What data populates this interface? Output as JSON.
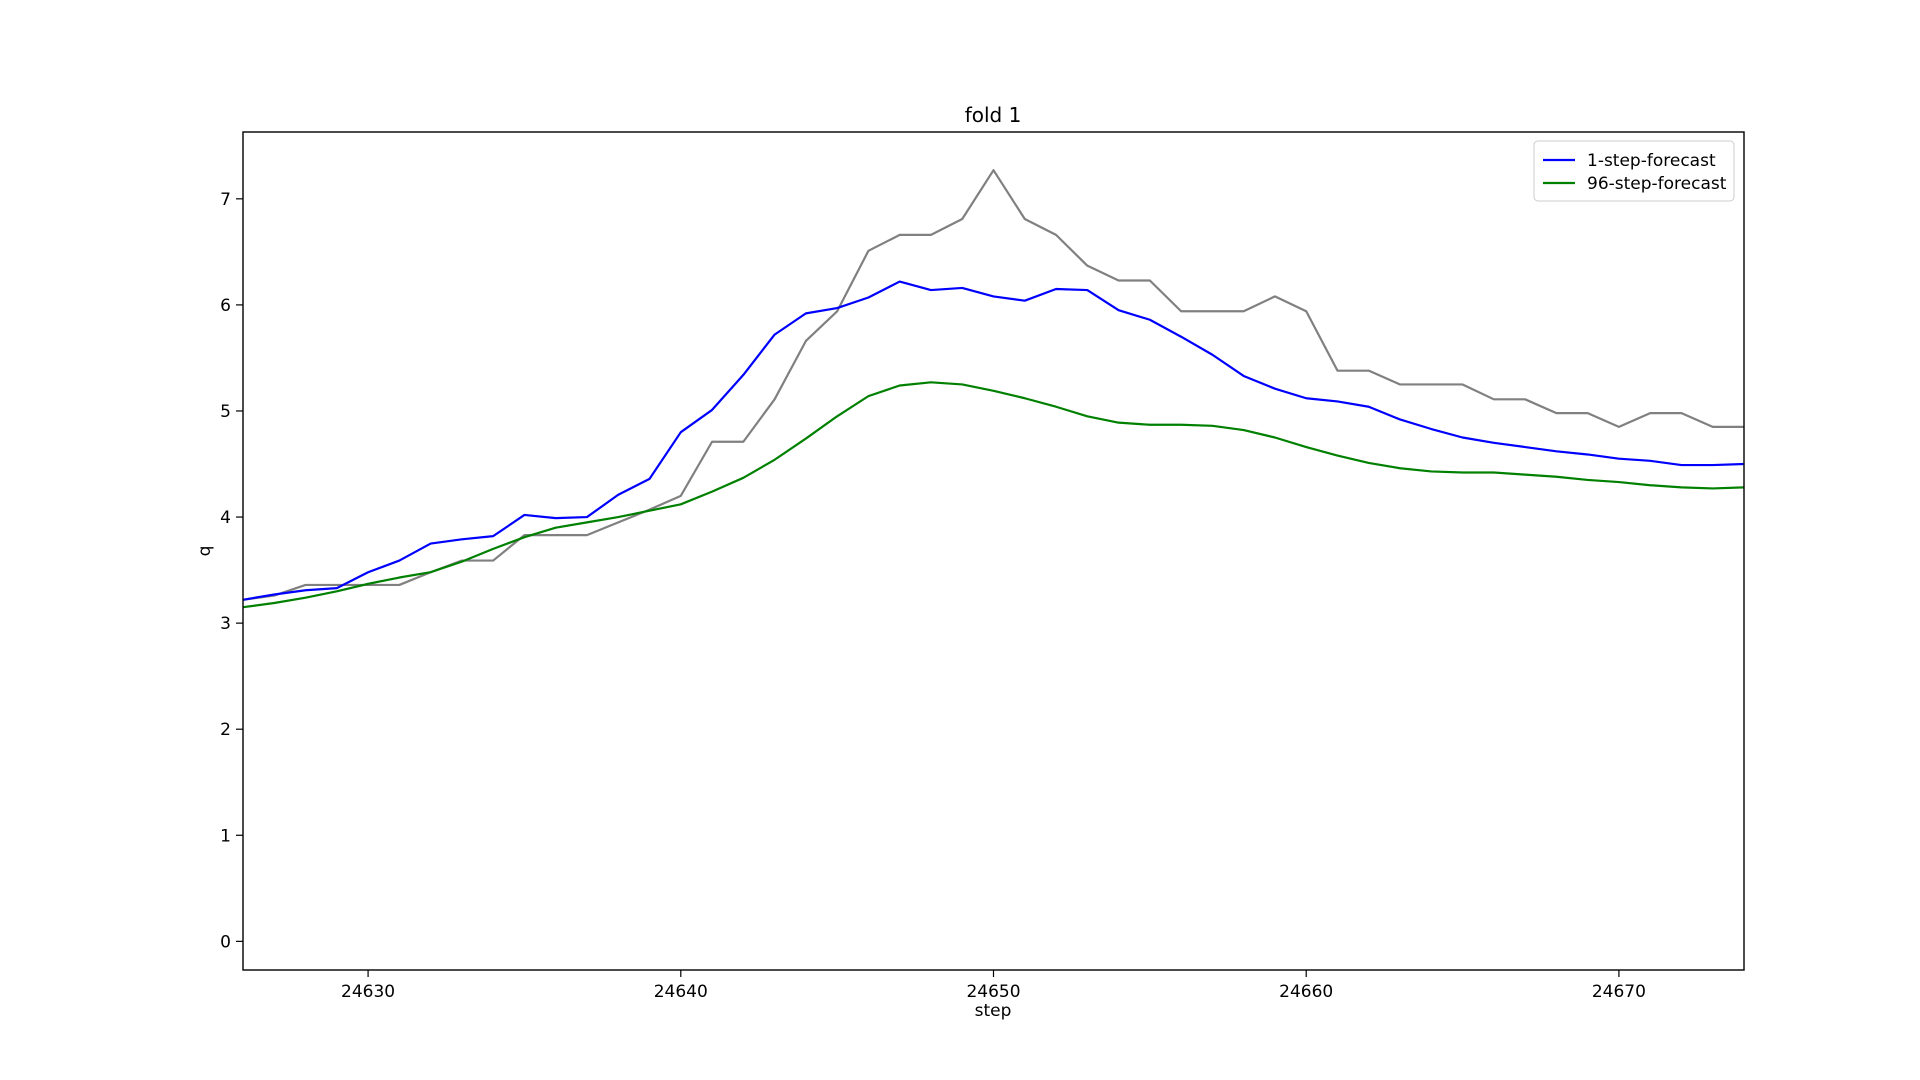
{
  "chart_data": {
    "type": "line",
    "title": "fold 1",
    "xlabel": "step",
    "ylabel": "q",
    "xlim": [
      24626,
      24674
    ],
    "ylim": [
      -0.27,
      7.63
    ],
    "xticks": [
      24630,
      24640,
      24650,
      24660,
      24670
    ],
    "yticks": [
      0,
      1,
      2,
      3,
      4,
      5,
      6,
      7
    ],
    "grid": false,
    "legend_position": "top-right",
    "x": [
      24626,
      24627,
      24628,
      24629,
      24630,
      24631,
      24632,
      24633,
      24634,
      24635,
      24636,
      24637,
      24638,
      24639,
      24640,
      24641,
      24642,
      24643,
      24644,
      24645,
      24646,
      24647,
      24648,
      24649,
      24650,
      24651,
      24652,
      24653,
      24654,
      24655,
      24656,
      24657,
      24658,
      24659,
      24660,
      24661,
      24662,
      24663,
      24664,
      24665,
      24666,
      24667,
      24668,
      24669,
      24670,
      24671,
      24672,
      24673,
      24674
    ],
    "series": [
      {
        "name": "",
        "color": "#808080",
        "values": [
          3.22,
          3.26,
          3.36,
          3.36,
          3.36,
          3.36,
          3.48,
          3.59,
          3.59,
          3.83,
          3.83,
          3.83,
          3.95,
          4.07,
          4.2,
          4.71,
          4.71,
          5.11,
          5.66,
          5.94,
          6.51,
          6.66,
          6.66,
          6.81,
          7.27,
          6.81,
          6.66,
          6.37,
          6.23,
          6.23,
          5.94,
          5.94,
          5.94,
          6.08,
          5.94,
          5.38,
          5.38,
          5.25,
          5.25,
          5.25,
          5.11,
          5.11,
          4.98,
          4.98,
          4.85,
          4.98,
          4.98,
          4.85,
          4.85
        ]
      },
      {
        "name": "1-step-forecast",
        "color": "#0000ff",
        "values": [
          3.22,
          3.27,
          3.31,
          3.33,
          3.48,
          3.59,
          3.75,
          3.79,
          3.82,
          4.02,
          3.99,
          4.0,
          4.21,
          4.36,
          4.8,
          5.01,
          5.34,
          5.72,
          5.92,
          5.97,
          6.07,
          6.22,
          6.14,
          6.16,
          6.08,
          6.04,
          6.15,
          6.14,
          5.95,
          5.86,
          5.7,
          5.53,
          5.33,
          5.21,
          5.12,
          5.09,
          5.04,
          4.92,
          4.83,
          4.75,
          4.7,
          4.66,
          4.62,
          4.59,
          4.55,
          4.53,
          4.49,
          4.49,
          4.5
        ]
      },
      {
        "name": "96-step-forecast",
        "color": "#008000",
        "values": [
          3.15,
          3.19,
          3.24,
          3.3,
          3.37,
          3.43,
          3.48,
          3.58,
          3.7,
          3.81,
          3.9,
          3.95,
          4.0,
          4.06,
          4.12,
          4.24,
          4.37,
          4.54,
          4.74,
          4.95,
          5.14,
          5.24,
          5.27,
          5.25,
          5.19,
          5.12,
          5.04,
          4.95,
          4.89,
          4.87,
          4.87,
          4.86,
          4.82,
          4.75,
          4.66,
          4.58,
          4.51,
          4.46,
          4.43,
          4.42,
          4.42,
          4.4,
          4.38,
          4.35,
          4.33,
          4.3,
          4.28,
          4.27,
          4.28
        ]
      }
    ]
  }
}
